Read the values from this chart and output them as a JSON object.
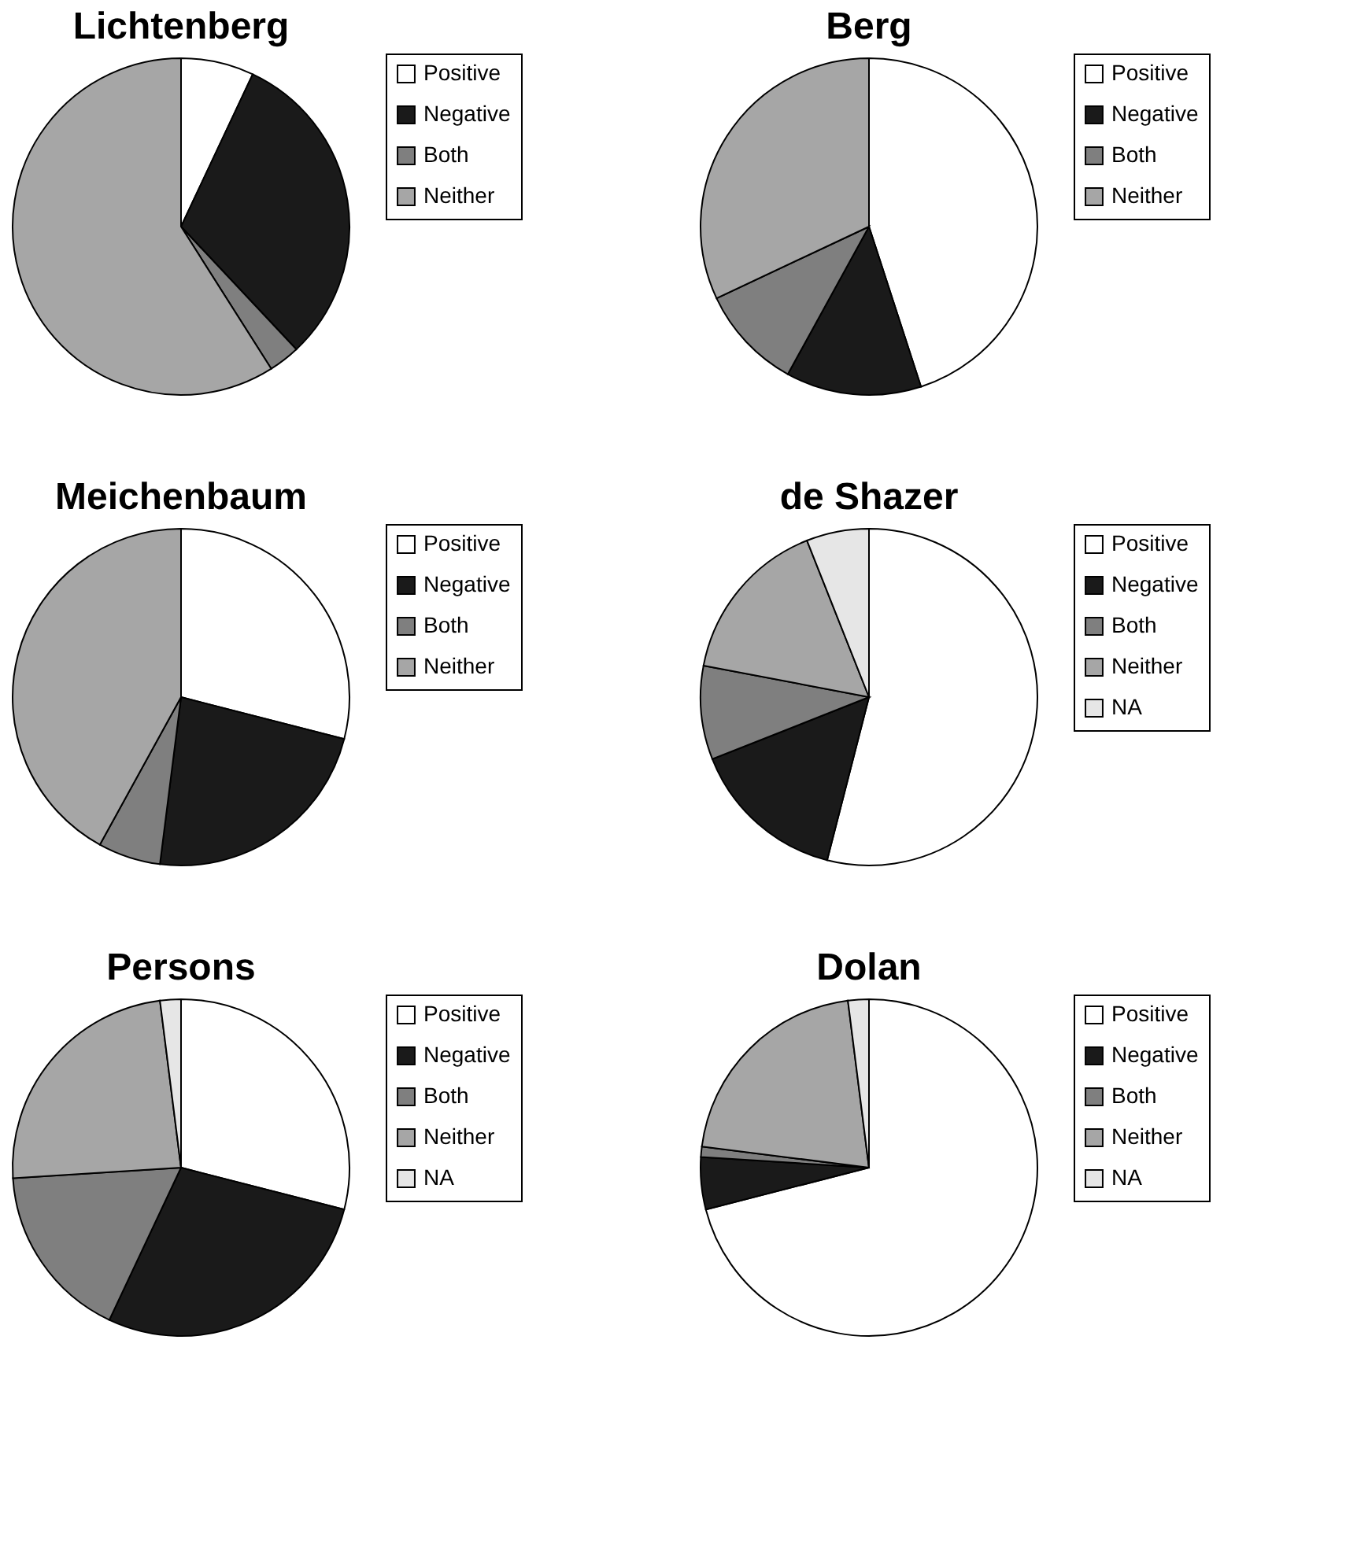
{
  "chart_data": [
    {
      "type": "pie",
      "title": "Lichtenberg",
      "categories": [
        "Positive",
        "Negative",
        "Both",
        "Neither"
      ],
      "values": [
        7,
        31,
        3,
        59
      ],
      "colors": [
        "#ffffff",
        "#1a1a1a",
        "#7f7f7f",
        "#a6a6a6"
      ],
      "legend": "right"
    },
    {
      "type": "pie",
      "title": "Berg",
      "categories": [
        "Positive",
        "Negative",
        "Both",
        "Neither"
      ],
      "values": [
        45,
        13,
        10,
        32
      ],
      "colors": [
        "#ffffff",
        "#1a1a1a",
        "#7f7f7f",
        "#a6a6a6"
      ],
      "legend": "right"
    },
    {
      "type": "pie",
      "title": "Meichenbaum",
      "categories": [
        "Positive",
        "Negative",
        "Both",
        "Neither"
      ],
      "values": [
        29,
        23,
        6,
        42
      ],
      "colors": [
        "#ffffff",
        "#1a1a1a",
        "#7f7f7f",
        "#a6a6a6"
      ],
      "legend": "right"
    },
    {
      "type": "pie",
      "title": "de Shazer",
      "categories": [
        "Positive",
        "Negative",
        "Both",
        "Neither",
        "NA"
      ],
      "values": [
        54,
        15,
        9,
        16,
        6
      ],
      "colors": [
        "#ffffff",
        "#1a1a1a",
        "#7f7f7f",
        "#a6a6a6",
        "#e6e6e6"
      ],
      "legend": "right"
    },
    {
      "type": "pie",
      "title": "Persons",
      "categories": [
        "Positive",
        "Negative",
        "Both",
        "Neither",
        "NA"
      ],
      "values": [
        29,
        28,
        17,
        24,
        2
      ],
      "colors": [
        "#ffffff",
        "#1a1a1a",
        "#7f7f7f",
        "#a6a6a6",
        "#e6e6e6"
      ],
      "legend": "right"
    },
    {
      "type": "pie",
      "title": "Dolan",
      "categories": [
        "Positive",
        "Negative",
        "Both",
        "Neither",
        "NA"
      ],
      "values": [
        71,
        5,
        1,
        21,
        2
      ],
      "colors": [
        "#ffffff",
        "#1a1a1a",
        "#7f7f7f",
        "#a6a6a6",
        "#e6e6e6"
      ],
      "legend": "right"
    }
  ]
}
